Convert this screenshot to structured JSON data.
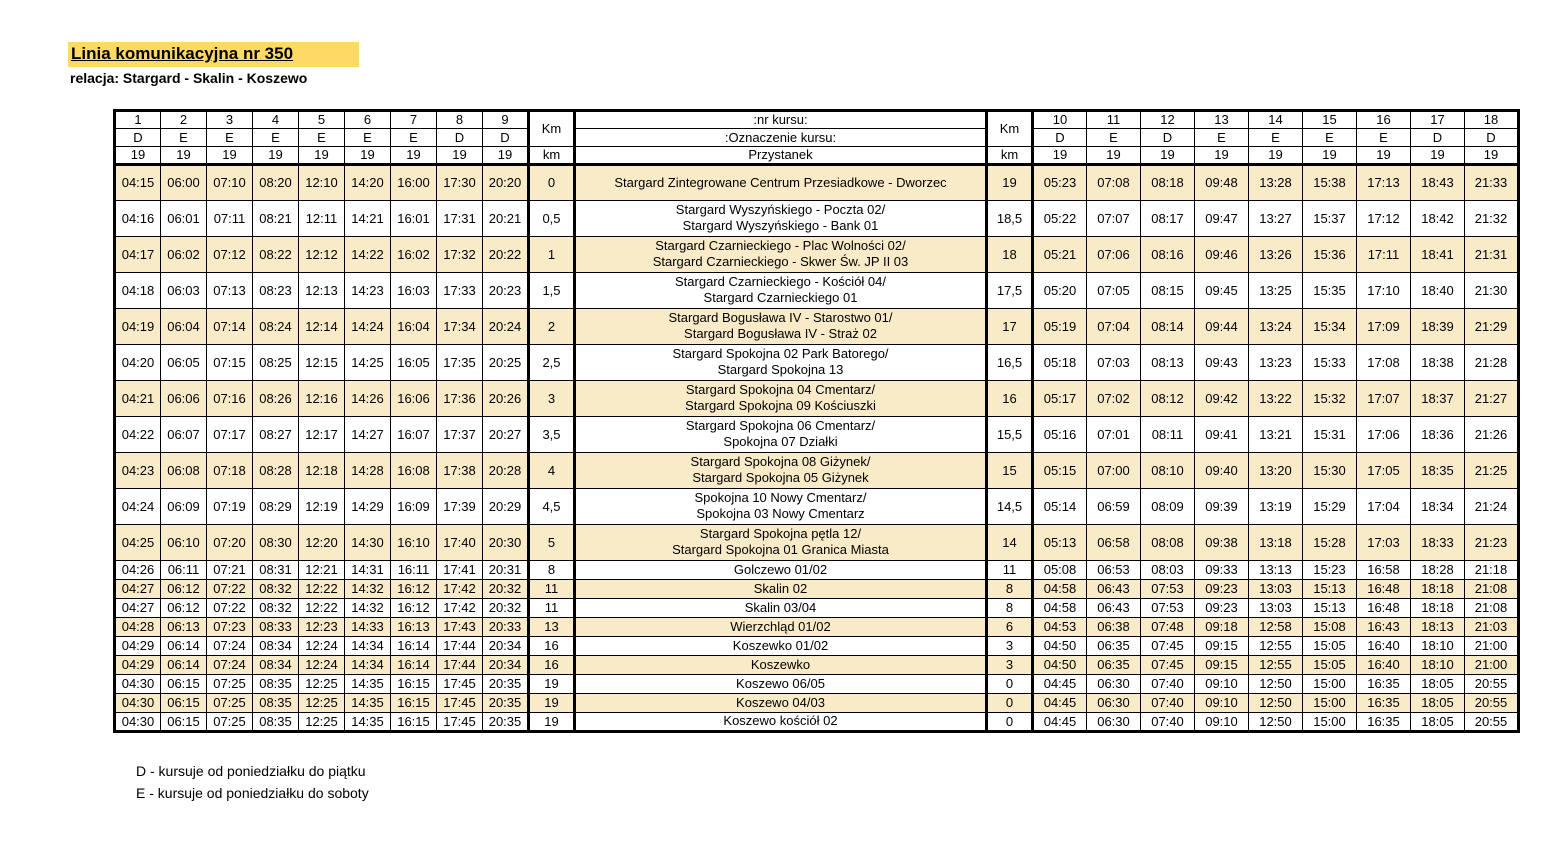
{
  "header": {
    "title": "Linia komunikacyjna nr 350",
    "subtitle": "relacja: Stargard - Skalin - Koszewo"
  },
  "colors": {
    "row_highlight": "#faebc8",
    "title_highlight": "#ffd966"
  },
  "table": {
    "km_header_top": "Km",
    "km_header_bottom": "km",
    "center_header": {
      "row1": ":nr kursu:",
      "row2": ":Oznaczenie kursu:",
      "row3": "Przystanek"
    },
    "left_course_numbers": [
      "1",
      "2",
      "3",
      "4",
      "5",
      "6",
      "7",
      "8",
      "9"
    ],
    "left_course_marks": [
      "D",
      "E",
      "E",
      "E",
      "E",
      "E",
      "E",
      "D",
      "D"
    ],
    "left_course_km": [
      "19",
      "19",
      "19",
      "19",
      "19",
      "19",
      "19",
      "19",
      "19"
    ],
    "right_course_numbers": [
      "10",
      "11",
      "12",
      "13",
      "14",
      "15",
      "16",
      "17",
      "18"
    ],
    "right_course_marks": [
      "D",
      "E",
      "D",
      "E",
      "E",
      "E",
      "E",
      "D",
      "D"
    ],
    "right_course_km": [
      "19",
      "19",
      "19",
      "19",
      "19",
      "19",
      "19",
      "19",
      "19"
    ],
    "rows": [
      {
        "tall": true,
        "highlight": true,
        "left_times": [
          "04:15",
          "06:00",
          "07:10",
          "08:20",
          "12:10",
          "14:20",
          "16:00",
          "17:30",
          "20:20"
        ],
        "km_out": "0",
        "stop_lines": [
          "Stargard Zintegrowane Centrum Przesiadkowe - Dworzec"
        ],
        "km_back": "19",
        "right_times": [
          "05:23",
          "07:08",
          "08:18",
          "09:48",
          "13:28",
          "15:38",
          "17:13",
          "18:43",
          "21:33"
        ]
      },
      {
        "tall": true,
        "highlight": false,
        "left_times": [
          "04:16",
          "06:01",
          "07:11",
          "08:21",
          "12:11",
          "14:21",
          "16:01",
          "17:31",
          "20:21"
        ],
        "km_out": "0,5",
        "stop_lines": [
          "Stargard Wyszyńskiego - Poczta 02/",
          "Stargard Wyszyńskiego - Bank 01"
        ],
        "km_back": "18,5",
        "right_times": [
          "05:22",
          "07:07",
          "08:17",
          "09:47",
          "13:27",
          "15:37",
          "17:12",
          "18:42",
          "21:32"
        ]
      },
      {
        "tall": true,
        "highlight": true,
        "left_times": [
          "04:17",
          "06:02",
          "07:12",
          "08:22",
          "12:12",
          "14:22",
          "16:02",
          "17:32",
          "20:22"
        ],
        "km_out": "1",
        "stop_lines": [
          "Stargard Czarnieckiego - Plac Wolności 02/",
          "Stargard Czarnieckiego - Skwer Św. JP II 03"
        ],
        "km_back": "18",
        "right_times": [
          "05:21",
          "07:06",
          "08:16",
          "09:46",
          "13:26",
          "15:36",
          "17:11",
          "18:41",
          "21:31"
        ]
      },
      {
        "tall": true,
        "highlight": false,
        "left_times": [
          "04:18",
          "06:03",
          "07:13",
          "08:23",
          "12:13",
          "14:23",
          "16:03",
          "17:33",
          "20:23"
        ],
        "km_out": "1,5",
        "stop_lines": [
          "Stargard Czarnieckiego - Kościół 04/",
          "Stargard Czarnieckiego 01"
        ],
        "km_back": "17,5",
        "right_times": [
          "05:20",
          "07:05",
          "08:15",
          "09:45",
          "13:25",
          "15:35",
          "17:10",
          "18:40",
          "21:30"
        ]
      },
      {
        "tall": true,
        "highlight": true,
        "left_times": [
          "04:19",
          "06:04",
          "07:14",
          "08:24",
          "12:14",
          "14:24",
          "16:04",
          "17:34",
          "20:24"
        ],
        "km_out": "2",
        "stop_lines": [
          "Stargard Bogusława IV - Starostwo 01/",
          "Stargard Bogusława IV - Straż 02"
        ],
        "km_back": "17",
        "right_times": [
          "05:19",
          "07:04",
          "08:14",
          "09:44",
          "13:24",
          "15:34",
          "17:09",
          "18:39",
          "21:29"
        ]
      },
      {
        "tall": true,
        "highlight": false,
        "left_times": [
          "04:20",
          "06:05",
          "07:15",
          "08:25",
          "12:15",
          "14:25",
          "16:05",
          "17:35",
          "20:25"
        ],
        "km_out": "2,5",
        "stop_lines": [
          "Stargard Spokojna 02 Park Batorego/",
          "Stargard Spokojna 13"
        ],
        "km_back": "16,5",
        "right_times": [
          "05:18",
          "07:03",
          "08:13",
          "09:43",
          "13:23",
          "15:33",
          "17:08",
          "18:38",
          "21:28"
        ]
      },
      {
        "tall": true,
        "highlight": true,
        "left_times": [
          "04:21",
          "06:06",
          "07:16",
          "08:26",
          "12:16",
          "14:26",
          "16:06",
          "17:36",
          "20:26"
        ],
        "km_out": "3",
        "stop_lines": [
          "Stargard Spokojna 04 Cmentarz/",
          "Stargard Spokojna 09 Kościuszki"
        ],
        "km_back": "16",
        "right_times": [
          "05:17",
          "07:02",
          "08:12",
          "09:42",
          "13:22",
          "15:32",
          "17:07",
          "18:37",
          "21:27"
        ]
      },
      {
        "tall": true,
        "highlight": false,
        "left_times": [
          "04:22",
          "06:07",
          "07:17",
          "08:27",
          "12:17",
          "14:27",
          "16:07",
          "17:37",
          "20:27"
        ],
        "km_out": "3,5",
        "stop_lines": [
          "Stargard Spokojna 06 Cmentarz/",
          "Spokojna 07 Działki"
        ],
        "km_back": "15,5",
        "right_times": [
          "05:16",
          "07:01",
          "08:11",
          "09:41",
          "13:21",
          "15:31",
          "17:06",
          "18:36",
          "21:26"
        ]
      },
      {
        "tall": true,
        "highlight": true,
        "left_times": [
          "04:23",
          "06:08",
          "07:18",
          "08:28",
          "12:18",
          "14:28",
          "16:08",
          "17:38",
          "20:28"
        ],
        "km_out": "4",
        "stop_lines": [
          "Stargard Spokojna 08 Giżynek/",
          "Stargard Spokojna 05 Giżynek"
        ],
        "km_back": "15",
        "right_times": [
          "05:15",
          "07:00",
          "08:10",
          "09:40",
          "13:20",
          "15:30",
          "17:05",
          "18:35",
          "21:25"
        ]
      },
      {
        "tall": true,
        "highlight": false,
        "left_times": [
          "04:24",
          "06:09",
          "07:19",
          "08:29",
          "12:19",
          "14:29",
          "16:09",
          "17:39",
          "20:29"
        ],
        "km_out": "4,5",
        "stop_lines": [
          "Spokojna 10 Nowy Cmentarz/",
          "Spokojna 03 Nowy Cmentarz"
        ],
        "km_back": "14,5",
        "right_times": [
          "05:14",
          "06:59",
          "08:09",
          "09:39",
          "13:19",
          "15:29",
          "17:04",
          "18:34",
          "21:24"
        ]
      },
      {
        "tall": true,
        "highlight": true,
        "left_times": [
          "04:25",
          "06:10",
          "07:20",
          "08:30",
          "12:20",
          "14:30",
          "16:10",
          "17:40",
          "20:30"
        ],
        "km_out": "5",
        "stop_lines": [
          "Stargard Spokojna pętla 12/",
          "Stargard Spokojna 01 Granica Miasta"
        ],
        "km_back": "14",
        "right_times": [
          "05:13",
          "06:58",
          "08:08",
          "09:38",
          "13:18",
          "15:28",
          "17:03",
          "18:33",
          "21:23"
        ]
      },
      {
        "tall": false,
        "highlight": false,
        "left_times": [
          "04:26",
          "06:11",
          "07:21",
          "08:31",
          "12:21",
          "14:31",
          "16:11",
          "17:41",
          "20:31"
        ],
        "km_out": "8",
        "stop_lines": [
          "Golczewo 01/02"
        ],
        "km_back": "11",
        "right_times": [
          "05:08",
          "06:53",
          "08:03",
          "09:33",
          "13:13",
          "15:23",
          "16:58",
          "18:28",
          "21:18"
        ]
      },
      {
        "tall": false,
        "highlight": true,
        "left_times": [
          "04:27",
          "06:12",
          "07:22",
          "08:32",
          "12:22",
          "14:32",
          "16:12",
          "17:42",
          "20:32"
        ],
        "km_out": "11",
        "stop_lines": [
          "Skalin 02"
        ],
        "km_back": "8",
        "right_times": [
          "04:58",
          "06:43",
          "07:53",
          "09:23",
          "13:03",
          "15:13",
          "16:48",
          "18:18",
          "21:08"
        ]
      },
      {
        "tall": false,
        "highlight": false,
        "left_times": [
          "04:27",
          "06:12",
          "07:22",
          "08:32",
          "12:22",
          "14:32",
          "16:12",
          "17:42",
          "20:32"
        ],
        "km_out": "11",
        "stop_lines": [
          "Skalin 03/04"
        ],
        "km_back": "8",
        "right_times": [
          "04:58",
          "06:43",
          "07:53",
          "09:23",
          "13:03",
          "15:13",
          "16:48",
          "18:18",
          "21:08"
        ]
      },
      {
        "tall": false,
        "highlight": true,
        "left_times": [
          "04:28",
          "06:13",
          "07:23",
          "08:33",
          "12:23",
          "14:33",
          "16:13",
          "17:43",
          "20:33"
        ],
        "km_out": "13",
        "stop_lines": [
          "Wierzchląd 01/02"
        ],
        "km_back": "6",
        "right_times": [
          "04:53",
          "06:38",
          "07:48",
          "09:18",
          "12:58",
          "15:08",
          "16:43",
          "18:13",
          "21:03"
        ]
      },
      {
        "tall": false,
        "highlight": false,
        "left_times": [
          "04:29",
          "06:14",
          "07:24",
          "08:34",
          "12:24",
          "14:34",
          "16:14",
          "17:44",
          "20:34"
        ],
        "km_out": "16",
        "stop_lines": [
          "Koszewko 01/02"
        ],
        "km_back": "3",
        "right_times": [
          "04:50",
          "06:35",
          "07:45",
          "09:15",
          "12:55",
          "15:05",
          "16:40",
          "18:10",
          "21:00"
        ]
      },
      {
        "tall": false,
        "highlight": true,
        "left_times": [
          "04:29",
          "06:14",
          "07:24",
          "08:34",
          "12:24",
          "14:34",
          "16:14",
          "17:44",
          "20:34"
        ],
        "km_out": "16",
        "stop_lines": [
          "Koszewko"
        ],
        "km_back": "3",
        "right_times": [
          "04:50",
          "06:35",
          "07:45",
          "09:15",
          "12:55",
          "15:05",
          "16:40",
          "18:10",
          "21:00"
        ]
      },
      {
        "tall": false,
        "highlight": false,
        "left_times": [
          "04:30",
          "06:15",
          "07:25",
          "08:35",
          "12:25",
          "14:35",
          "16:15",
          "17:45",
          "20:35"
        ],
        "km_out": "19",
        "stop_lines": [
          "Koszewo 06/05"
        ],
        "km_back": "0",
        "right_times": [
          "04:45",
          "06:30",
          "07:40",
          "09:10",
          "12:50",
          "15:00",
          "16:35",
          "18:05",
          "20:55"
        ]
      },
      {
        "tall": false,
        "highlight": true,
        "left_times": [
          "04:30",
          "06:15",
          "07:25",
          "08:35",
          "12:25",
          "14:35",
          "16:15",
          "17:45",
          "20:35"
        ],
        "km_out": "19",
        "stop_lines": [
          "Koszewo 04/03"
        ],
        "km_back": "0",
        "right_times": [
          "04:45",
          "06:30",
          "07:40",
          "09:10",
          "12:50",
          "15:00",
          "16:35",
          "18:05",
          "20:55"
        ]
      },
      {
        "tall": false,
        "highlight": false,
        "left_times": [
          "04:30",
          "06:15",
          "07:25",
          "08:35",
          "12:25",
          "14:35",
          "16:15",
          "17:45",
          "20:35"
        ],
        "km_out": "19",
        "stop_lines": [
          "Koszewo kościół 02"
        ],
        "km_back": "0",
        "right_times": [
          "04:45",
          "06:30",
          "07:40",
          "09:10",
          "12:50",
          "15:00",
          "16:35",
          "18:05",
          "20:55"
        ]
      }
    ]
  },
  "legend": {
    "d": "D - kursuje od poniedziałku do piątku",
    "e": "E - kursuje od poniedziałku do soboty"
  }
}
